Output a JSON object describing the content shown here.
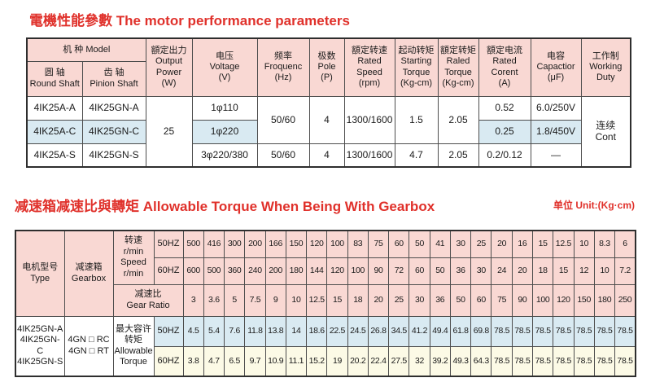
{
  "colors": {
    "title_red": "#e0312b",
    "header_pink": "#f9d8d3",
    "highlight_blue": "#d9eaf2",
    "highlight_cream": "#fcfae6",
    "border_gray": "#4d4d4d"
  },
  "motor_section": {
    "title": "電機性能參數 The motor performance parameters",
    "header": {
      "model": "机  种 Model",
      "round_shaft": "圆 轴\nRound Shaft",
      "pinion_shaft": "齿 轴\nPinion Shaft",
      "output_power": "額定出力\nOutput\nPower\n(W)",
      "voltage": "电压\nVoltage\n(V)",
      "frequency": "频率\nFroquenc\n(Hz)",
      "pole": "极数\nPole\n(P)",
      "rated_speed": "額定转速\nRated\nSpeed\n(rpm)",
      "starting_torque": "起动转矩\nStarting\nTorque\n(Kg-cm)",
      "rated_torque": "額定转矩\nRaled\nTorque\n(Kg-cm)",
      "rated_current": "額定电流\nRated\nCorent\n(A)",
      "capacitor": "电容\nCapactior\n(μF)",
      "working_duty": "工作制\nWorking\nDuty"
    },
    "rows": {
      "row1": {
        "round": "4IK25A-A",
        "pinion": "4IK25GN-A",
        "voltage": "1φ110",
        "current": "0.52",
        "capacitor": "6.0/250V"
      },
      "row2": {
        "round": "4IK25A-C",
        "pinion": "4IK25GN-C",
        "voltage": "1φ220",
        "current": "0.25",
        "capacitor": "1.8/450V"
      },
      "row3": {
        "round": "4IK25A-S",
        "pinion": "4IK25GN-S",
        "voltage": "3φ220/380",
        "frequency": "50/60",
        "pole": "4",
        "speed": "1300/1600",
        "starting_torque": "4.7",
        "rated_torque": "2.05",
        "current": "0.2/0.12",
        "capacitor": "—"
      },
      "merged": {
        "output_power": "25",
        "frequency_rows12": "50/60",
        "pole_rows12": "4",
        "speed_rows12": "1300/1600",
        "starting_torque_rows12": "1.5",
        "rated_torque_rows12": "2.05",
        "working_duty": "连续\nCont"
      }
    }
  },
  "gearbox_section": {
    "title": "减速箱减速比與轉矩 Allowable Torque When Being With Gearbox",
    "unit_label": "单位 Unit:(Kg·cm)",
    "header": {
      "type": "电机型号\nType",
      "gearbox": "减速箱\nGearbox",
      "speed": "转速\nr/min\nSpeed\nr/min",
      "hz50": "50HZ",
      "hz60": "60HZ",
      "gear_ratio": "减速比\nGear Ratio",
      "allowable_torque": "最大容许\n转矩\nAllowable\nTorque"
    },
    "body": {
      "type_models": "4IK25GN-A\n4IK25GN-C\n4IK25GN-S",
      "gearbox_models": "4GN □ RC\n4GN □ RT",
      "hz50": "50HZ",
      "hz60": "60HZ"
    },
    "speed_50hz": [
      "500",
      "416",
      "300",
      "200",
      "166",
      "150",
      "120",
      "100",
      "83",
      "75",
      "60",
      "50",
      "41",
      "30",
      "25",
      "20",
      "16",
      "15",
      "12.5",
      "10",
      "8.3",
      "6"
    ],
    "speed_60hz": [
      "600",
      "500",
      "360",
      "240",
      "200",
      "180",
      "144",
      "120",
      "100",
      "90",
      "72",
      "60",
      "50",
      "36",
      "30",
      "24",
      "20",
      "18",
      "15",
      "12",
      "10",
      "7.2"
    ],
    "gear_ratio": [
      "3",
      "3.6",
      "5",
      "7.5",
      "9",
      "10",
      "12.5",
      "15",
      "18",
      "20",
      "25",
      "30",
      "36",
      "50",
      "60",
      "75",
      "90",
      "100",
      "120",
      "150",
      "180",
      "250"
    ],
    "torque_50hz": [
      "4.5",
      "5.4",
      "7.6",
      "11.8",
      "13.8",
      "14",
      "18.6",
      "22.5",
      "24.5",
      "26.8",
      "34.5",
      "41.2",
      "49.4",
      "61.8",
      "69.8",
      "78.5",
      "78.5",
      "78.5",
      "78.5",
      "78.5",
      "78.5",
      "78.5"
    ],
    "torque_60hz": [
      "3.8",
      "4.7",
      "6.5",
      "9.7",
      "10.9",
      "11.1",
      "15.2",
      "19",
      "20.2",
      "22.4",
      "27.5",
      "32",
      "39.2",
      "49.3",
      "64.3",
      "78.5",
      "78.5",
      "78.5",
      "78.5",
      "78.5",
      "78.5",
      "78.5"
    ]
  }
}
